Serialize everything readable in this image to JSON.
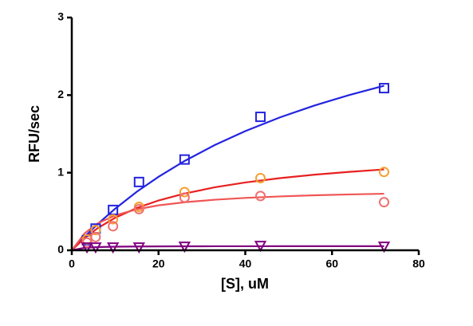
{
  "chart_data": {
    "type": "scatter",
    "x_label": "[S], uM",
    "y_label": "RFU/sec",
    "xlim": [
      0,
      80
    ],
    "ylim": [
      0,
      3
    ],
    "xticks": [
      0,
      20,
      40,
      60,
      80
    ],
    "yticks": [
      0,
      1,
      2,
      3
    ],
    "series": [
      {
        "color": "#2323e0",
        "marker": "square",
        "x": [
          3.5,
          5.5,
          9.5,
          15.5,
          26,
          43.5,
          72
        ],
        "values": [
          0.13,
          0.28,
          0.52,
          0.88,
          1.17,
          1.72,
          2.09
        ]
      },
      {
        "color": "#f5a030",
        "marker": "circle",
        "x": [
          3.5,
          5.5,
          9.5,
          15.5,
          26,
          43.5,
          72
        ],
        "values": [
          0.14,
          0.26,
          0.4,
          0.56,
          0.75,
          0.93,
          1.01
        ]
      },
      {
        "color": "#f07070",
        "marker": "circle",
        "x": [
          3.5,
          5.5,
          9.5,
          15.5,
          26,
          43.5,
          72
        ],
        "values": [
          0.1,
          0.17,
          0.31,
          0.53,
          0.68,
          0.7,
          0.62
        ]
      },
      {
        "color": "#800080",
        "marker": "triangle-down",
        "x": [
          3.5,
          5.5,
          9.5,
          15.5,
          26,
          43.5,
          72
        ],
        "values": [
          0.04,
          0.04,
          0.04,
          0.04,
          0.05,
          0.06,
          0.05
        ]
      }
    ],
    "fits": [
      {
        "color": "#2323e0",
        "x": [
          0,
          3,
          6,
          10,
          15,
          20,
          26,
          33,
          40,
          48,
          56,
          64,
          72
        ],
        "values": [
          0,
          0.177,
          0.34,
          0.536,
          0.755,
          0.947,
          1.151,
          1.357,
          1.536,
          1.713,
          1.867,
          2.002,
          2.121
        ]
      },
      {
        "color": "#e82020",
        "x": [
          0,
          3,
          6,
          10,
          15,
          20,
          26,
          33,
          40,
          48,
          56,
          64,
          72
        ],
        "values": [
          0,
          0.16,
          0.286,
          0.419,
          0.545,
          0.642,
          0.731,
          0.812,
          0.874,
          0.93,
          0.975,
          1.011,
          1.042
        ]
      },
      {
        "color": "#f05555",
        "x": [
          0,
          3,
          6,
          10,
          15,
          20,
          26,
          33,
          40,
          48,
          56,
          64,
          72
        ],
        "values": [
          0,
          0.221,
          0.347,
          0.45,
          0.528,
          0.579,
          0.619,
          0.652,
          0.675,
          0.694,
          0.709,
          0.72,
          0.729
        ]
      },
      {
        "color": "#800080",
        "x": [
          0,
          3,
          6,
          10,
          15,
          20,
          26,
          33,
          40,
          48,
          56,
          64,
          72
        ],
        "values": [
          0,
          0.033,
          0.041,
          0.046,
          0.049,
          0.05,
          0.051,
          0.052,
          0.052,
          0.053,
          0.053,
          0.053,
          0.053
        ]
      }
    ]
  }
}
